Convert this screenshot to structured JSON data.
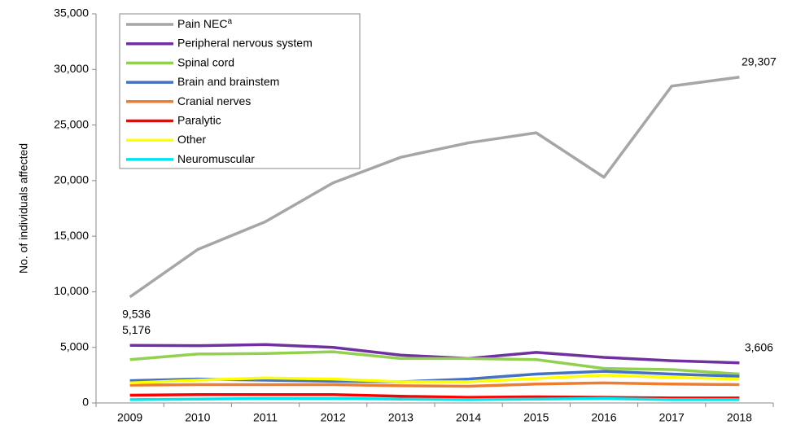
{
  "chart_data": {
    "type": "line",
    "y_axis_label": "No. of individuals affected",
    "categories": [
      "2009",
      "2010",
      "2011",
      "2012",
      "2013",
      "2014",
      "2015",
      "2016",
      "2017",
      "2018"
    ],
    "ylim": [
      0,
      35000
    ],
    "yticks": [
      {
        "value": 0,
        "label": "0"
      },
      {
        "value": 5000,
        "label": "5,000"
      },
      {
        "value": 10000,
        "label": "10,000"
      },
      {
        "value": 15000,
        "label": "15,000"
      },
      {
        "value": 20000,
        "label": "20,000"
      },
      {
        "value": 25000,
        "label": "25,000"
      },
      {
        "value": 30000,
        "label": "30,000"
      },
      {
        "value": 35000,
        "label": "35,000"
      }
    ],
    "grid": false,
    "legend": "top-left",
    "series": [
      {
        "name": "Pain NEC",
        "name_superscript": "a",
        "color": "#a6a6a6",
        "values": [
          9536,
          13800,
          16300,
          19800,
          22100,
          23400,
          24300,
          20300,
          28500,
          29307
        ],
        "value_labels": [
          "9,536",
          null,
          null,
          null,
          null,
          null,
          null,
          null,
          null,
          "29,307"
        ]
      },
      {
        "name": "Peripheral nervous system",
        "color": "#7030a0",
        "values": [
          5176,
          5150,
          5250,
          5000,
          4300,
          4000,
          4550,
          4100,
          3800,
          3606
        ],
        "value_labels": [
          "5,176",
          null,
          null,
          null,
          null,
          null,
          null,
          null,
          null,
          "3,606"
        ]
      },
      {
        "name": "Spinal cord",
        "color": "#92d050",
        "values": [
          3900,
          4400,
          4450,
          4600,
          4000,
          4000,
          3900,
          3100,
          3000,
          2600
        ]
      },
      {
        "name": "Brain and brainstem",
        "color": "#4472c4",
        "values": [
          2000,
          2150,
          2050,
          1950,
          1900,
          2150,
          2600,
          2850,
          2600,
          2400
        ]
      },
      {
        "name": "Cranial nerves",
        "color": "#ed7d31",
        "values": [
          1600,
          1650,
          1650,
          1650,
          1550,
          1500,
          1700,
          1800,
          1700,
          1650
        ]
      },
      {
        "name": "Paralytic",
        "color": "#ff0000",
        "values": [
          700,
          750,
          750,
          750,
          600,
          500,
          550,
          500,
          450,
          450
        ]
      },
      {
        "name": "Other",
        "color": "#ffff00",
        "values": [
          1800,
          2050,
          2250,
          2150,
          1900,
          1900,
          2200,
          2500,
          2300,
          2150
        ]
      },
      {
        "name": "Neuromuscular",
        "color": "#00e5ee",
        "values": [
          300,
          350,
          400,
          400,
          350,
          300,
          350,
          400,
          300,
          300
        ]
      }
    ]
  }
}
